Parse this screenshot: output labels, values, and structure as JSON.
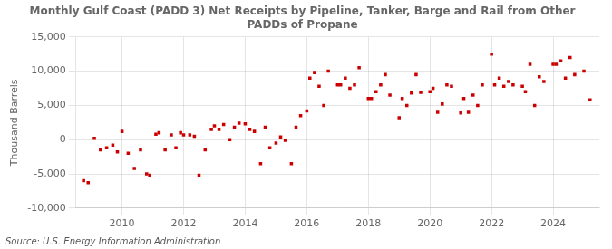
{
  "chart_data": {
    "type": "scatter",
    "title": "Monthly Gulf Coast (PADD 3) Net Receipts by Pipeline, Tanker, Barge and Rail from Other\nPADDs of Propane",
    "ylabel": "Thousand Barrels",
    "source": "Source: U.S. Energy Information Administration",
    "color": "#cc0000",
    "marker": "square",
    "grid": true,
    "xlim": [
      2008.5,
      2025.5
    ],
    "xticks": [
      2010,
      2012,
      2014,
      2016,
      2018,
      2020,
      2022,
      2024
    ],
    "ylim": [
      -10000,
      15000
    ],
    "yticks": [
      {
        "value": -10000,
        "label": "-10,000"
      },
      {
        "value": -5000,
        "label": "-5,000"
      },
      0,
      {
        "value": 5000,
        "label": "5,000"
      },
      {
        "value": 10000,
        "label": "10,000"
      },
      {
        "value": 15000,
        "label": "15,000"
      }
    ],
    "x": [
      2008.75,
      2008.9,
      2009.1,
      2009.3,
      2009.5,
      2009.7,
      2009.85,
      2010.0,
      2010.2,
      2010.4,
      2010.6,
      2010.8,
      2010.9,
      2011.1,
      2011.2,
      2011.4,
      2011.6,
      2011.75,
      2011.9,
      2012.0,
      2012.2,
      2012.35,
      2012.5,
      2012.7,
      2012.9,
      2013.0,
      2013.15,
      2013.3,
      2013.5,
      2013.65,
      2013.8,
      2014.0,
      2014.15,
      2014.3,
      2014.5,
      2014.65,
      2014.8,
      2015.0,
      2015.15,
      2015.3,
      2015.5,
      2015.65,
      2015.8,
      2016.0,
      2016.1,
      2016.25,
      2016.4,
      2016.55,
      2016.7,
      2017.0,
      2017.1,
      2017.25,
      2017.4,
      2017.55,
      2017.7,
      2018.0,
      2018.1,
      2018.25,
      2018.4,
      2018.55,
      2018.7,
      2019.0,
      2019.1,
      2019.25,
      2019.4,
      2019.55,
      2019.7,
      2020.0,
      2020.1,
      2020.25,
      2020.4,
      2020.55,
      2020.7,
      2021.0,
      2021.1,
      2021.25,
      2021.4,
      2021.55,
      2021.7,
      2022.0,
      2022.1,
      2022.25,
      2022.4,
      2022.55,
      2022.7,
      2023.0,
      2023.1,
      2023.25,
      2023.4,
      2023.55,
      2023.7,
      2024.0,
      2024.1,
      2024.25,
      2024.4,
      2024.55,
      2024.7,
      2025.0,
      2025.2
    ],
    "values": [
      -6000,
      -6300,
      200,
      -1500,
      -1200,
      -800,
      -1800,
      1200,
      -2000,
      -4200,
      -1500,
      -5000,
      -5200,
      800,
      1000,
      -1500,
      700,
      -1200,
      1000,
      700,
      700,
      500,
      -5200,
      -1500,
      1500,
      2000,
      1500,
      2200,
      0,
      1800,
      2400,
      2300,
      1500,
      1200,
      -3500,
      1800,
      -1200,
      -500,
      400,
      -100,
      -3500,
      1800,
      3500,
      4200,
      9000,
      9800,
      7800,
      5000,
      10000,
      8000,
      8000,
      9000,
      7500,
      8000,
      10500,
      6000,
      6000,
      7000,
      8000,
      9500,
      6500,
      3200,
      6000,
      5000,
      6800,
      9500,
      6900,
      7000,
      7500,
      4000,
      5200,
      8000,
      7800,
      3900,
      6000,
      4000,
      6500,
      5000,
      8000,
      12500,
      8000,
      9000,
      7800,
      8500,
      8000,
      7800,
      7000,
      11000,
      5000,
      9200,
      8500,
      11000,
      11000,
      11500,
      9000,
      12000,
      9500,
      10000,
      5800
    ]
  }
}
